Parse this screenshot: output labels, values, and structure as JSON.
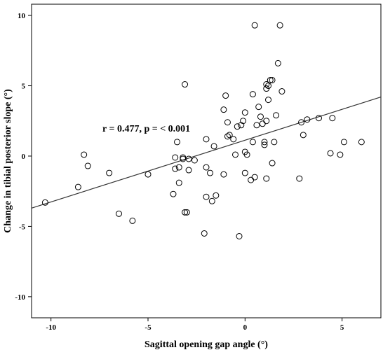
{
  "chart_data": {
    "type": "scatter",
    "xlabel": "Sagittal opening gap angle (°)",
    "ylabel": "Change in tibial posterior slope (°)",
    "xlim": [
      -11,
      7
    ],
    "ylim": [
      -11.5,
      10.8
    ],
    "x_ticks": [
      -10,
      -5,
      0,
      5
    ],
    "y_ticks": [
      -10,
      -5,
      0,
      5,
      10
    ],
    "x_tick_labels": [
      "-10",
      "-5",
      "0",
      "5"
    ],
    "y_tick_labels": [
      "-10",
      "-5",
      "0",
      "5",
      "10"
    ],
    "annotation": "r = 0.477, p = < 0.001",
    "grid": false,
    "regression_line": {
      "x": [
        -11,
        7
      ],
      "y": [
        -3.7,
        4.2
      ]
    },
    "points": [
      {
        "x": -10.3,
        "y": -3.3
      },
      {
        "x": -8.6,
        "y": -2.2
      },
      {
        "x": -8.3,
        "y": 0.1
      },
      {
        "x": -8.1,
        "y": -0.7
      },
      {
        "x": -7.0,
        "y": -1.2
      },
      {
        "x": -6.5,
        "y": -4.1
      },
      {
        "x": -5.8,
        "y": -4.6
      },
      {
        "x": -5.0,
        "y": -1.3
      },
      {
        "x": -3.7,
        "y": -2.7
      },
      {
        "x": -3.6,
        "y": -0.9
      },
      {
        "x": -3.6,
        "y": -0.1
      },
      {
        "x": -3.5,
        "y": 1.0
      },
      {
        "x": -3.4,
        "y": -1.9
      },
      {
        "x": -3.4,
        "y": -0.8
      },
      {
        "x": -3.2,
        "y": -0.1
      },
      {
        "x": -3.2,
        "y": -0.2
      },
      {
        "x": -3.1,
        "y": 5.1
      },
      {
        "x": -3.1,
        "y": -4.0
      },
      {
        "x": -3.0,
        "y": -4.0
      },
      {
        "x": -2.9,
        "y": -1.0
      },
      {
        "x": -2.9,
        "y": -0.2
      },
      {
        "x": -2.6,
        "y": -0.3
      },
      {
        "x": -2.1,
        "y": -5.5
      },
      {
        "x": -2.0,
        "y": 1.2
      },
      {
        "x": -2.0,
        "y": -0.8
      },
      {
        "x": -2.0,
        "y": -2.9
      },
      {
        "x": -1.8,
        "y": -1.2
      },
      {
        "x": -1.7,
        "y": -3.2
      },
      {
        "x": -1.6,
        "y": 0.7
      },
      {
        "x": -1.5,
        "y": -2.8
      },
      {
        "x": -1.1,
        "y": 3.3
      },
      {
        "x": -1.1,
        "y": -1.3
      },
      {
        "x": -1.0,
        "y": 4.3
      },
      {
        "x": -0.9,
        "y": 2.4
      },
      {
        "x": -0.9,
        "y": 1.4
      },
      {
        "x": -0.8,
        "y": 1.5
      },
      {
        "x": -0.6,
        "y": 1.2
      },
      {
        "x": -0.5,
        "y": 0.1
      },
      {
        "x": -0.4,
        "y": 2.1
      },
      {
        "x": -0.3,
        "y": -5.7
      },
      {
        "x": -0.2,
        "y": 2.2
      },
      {
        "x": -0.1,
        "y": 2.5
      },
      {
        "x": 0.0,
        "y": 3.1
      },
      {
        "x": 0.0,
        "y": 0.3
      },
      {
        "x": 0.0,
        "y": -1.2
      },
      {
        "x": 0.1,
        "y": 0.1
      },
      {
        "x": 0.3,
        "y": -1.7
      },
      {
        "x": 0.4,
        "y": 4.4
      },
      {
        "x": 0.4,
        "y": 1.0
      },
      {
        "x": 0.5,
        "y": 9.3
      },
      {
        "x": 0.5,
        "y": -1.5
      },
      {
        "x": 0.6,
        "y": 2.2
      },
      {
        "x": 0.7,
        "y": 3.5
      },
      {
        "x": 0.8,
        "y": 2.8
      },
      {
        "x": 0.9,
        "y": 2.3
      },
      {
        "x": 1.0,
        "y": 1.0
      },
      {
        "x": 1.0,
        "y": 0.8
      },
      {
        "x": 1.1,
        "y": 5.1
      },
      {
        "x": 1.1,
        "y": 4.8
      },
      {
        "x": 1.1,
        "y": 2.5
      },
      {
        "x": 1.1,
        "y": -1.6
      },
      {
        "x": 1.2,
        "y": 4.0
      },
      {
        "x": 1.2,
        "y": 5.0
      },
      {
        "x": 1.3,
        "y": 5.4
      },
      {
        "x": 1.4,
        "y": 5.4
      },
      {
        "x": 1.4,
        "y": -0.5
      },
      {
        "x": 1.5,
        "y": 1.0
      },
      {
        "x": 1.6,
        "y": 2.9
      },
      {
        "x": 1.7,
        "y": 6.6
      },
      {
        "x": 1.8,
        "y": 9.3
      },
      {
        "x": 1.9,
        "y": 4.6
      },
      {
        "x": 2.8,
        "y": -1.6
      },
      {
        "x": 2.9,
        "y": 2.4
      },
      {
        "x": 3.0,
        "y": 1.5
      },
      {
        "x": 3.2,
        "y": 2.6
      },
      {
        "x": 3.8,
        "y": 2.7
      },
      {
        "x": 4.4,
        "y": 0.2
      },
      {
        "x": 4.5,
        "y": 2.7
      },
      {
        "x": 4.9,
        "y": 0.1
      },
      {
        "x": 5.1,
        "y": 1.0
      },
      {
        "x": 6.0,
        "y": 1.0
      }
    ]
  }
}
